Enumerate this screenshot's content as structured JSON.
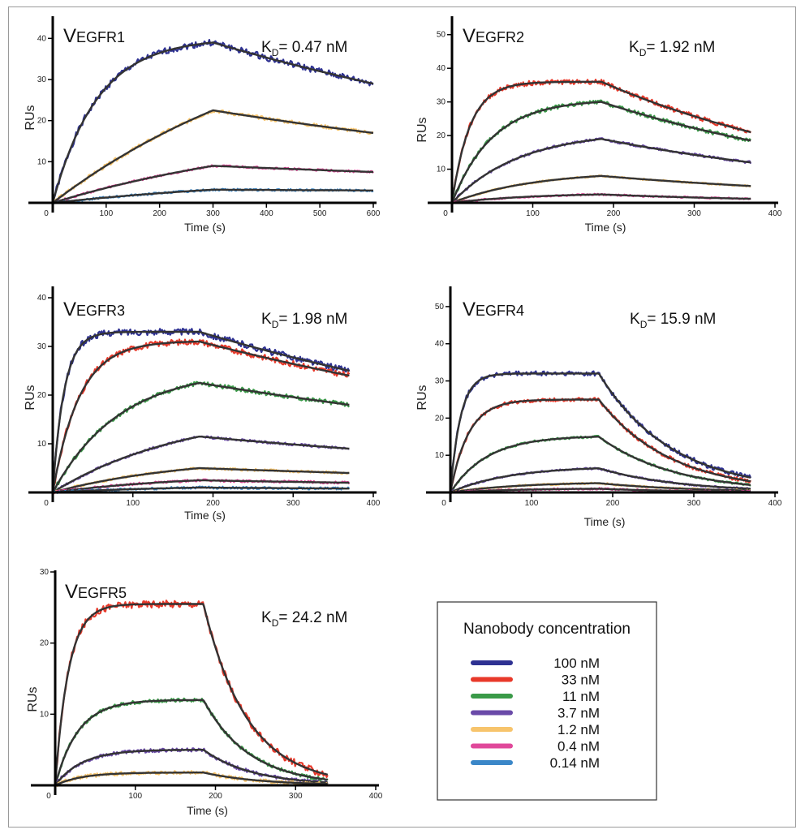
{
  "chart_data": [
    {
      "type": "line",
      "title": "VEGFR1",
      "annotation": "KD= 0.47 nM",
      "kd_value": "0.47",
      "xlabel": "Time (s)",
      "ylabel": "RUs",
      "xlim": [
        0,
        600
      ],
      "ylim": [
        0,
        45
      ],
      "xticks": [
        0,
        100,
        200,
        300,
        400,
        500,
        600
      ],
      "yticks": [
        10,
        20,
        30,
        40
      ],
      "switch_time": 300,
      "end_time": 600,
      "series": [
        {
          "name": "100 nM",
          "peak": 39,
          "end": 29,
          "kon_rate": 0.012,
          "koff_rate": 0.0011
        },
        {
          "name": "1.2 nM",
          "peak": 22.5,
          "end": 17,
          "kon_rate": 0.002,
          "koff_rate": 0.0008
        },
        {
          "name": "0.4 nM",
          "peak": 9,
          "end": 7.5,
          "kon_rate": 0.002,
          "koff_rate": 0.0007
        },
        {
          "name": "0.14 nM",
          "peak": 3.2,
          "end": 3,
          "kon_rate": 0.002,
          "koff_rate": 0.0003
        }
      ]
    },
    {
      "type": "line",
      "title": "VEGFR2",
      "annotation": "KD= 1.92 nM",
      "kd_value": "1.92",
      "xlabel": "Time (s)",
      "ylabel": "RUs",
      "xlim": [
        0,
        400
      ],
      "ylim": [
        0,
        55
      ],
      "xticks": [
        0,
        100,
        200,
        300,
        400
      ],
      "yticks": [
        10,
        20,
        30,
        40,
        50
      ],
      "switch_time": 185,
      "end_time": 370,
      "series": [
        {
          "name": "33 nM",
          "peak": 36,
          "end": 21,
          "kon_rate": 0.045,
          "koff_rate": 0.0029
        },
        {
          "name": "11 nM",
          "peak": 30,
          "end": 18.5,
          "kon_rate": 0.02,
          "koff_rate": 0.0026
        },
        {
          "name": "3.7 nM",
          "peak": 19,
          "end": 12,
          "kon_rate": 0.012,
          "koff_rate": 0.0025
        },
        {
          "name": "1.2 nM",
          "peak": 8,
          "end": 5,
          "kon_rate": 0.01,
          "koff_rate": 0.0025
        },
        {
          "name": "0.4 nM",
          "peak": 2.5,
          "end": 1.2,
          "kon_rate": 0.01,
          "koff_rate": 0.004
        }
      ]
    },
    {
      "type": "line",
      "title": "VEGFR3",
      "annotation": "KD= 1.98 nM",
      "kd_value": "1.98",
      "xlabel": "Time (s)",
      "ylabel": "RUs",
      "xlim": [
        0,
        400
      ],
      "ylim": [
        0,
        42
      ],
      "xticks": [
        0,
        100,
        200,
        300,
        400
      ],
      "yticks": [
        10,
        20,
        30,
        40
      ],
      "switch_time": 183,
      "end_time": 370,
      "series": [
        {
          "name": "100 nM",
          "peak": 33,
          "end": 25,
          "kon_rate": 0.07,
          "koff_rate": 0.0015
        },
        {
          "name": "33 nM",
          "peak": 31,
          "end": 24,
          "kon_rate": 0.03,
          "koff_rate": 0.0014
        },
        {
          "name": "11 nM",
          "peak": 22.5,
          "end": 18,
          "kon_rate": 0.012,
          "koff_rate": 0.0012
        },
        {
          "name": "3.7 nM",
          "peak": 11.5,
          "end": 9,
          "kon_rate": 0.006,
          "koff_rate": 0.0013
        },
        {
          "name": "1.2 nM",
          "peak": 5,
          "end": 4,
          "kon_rate": 0.006,
          "koff_rate": 0.0012
        },
        {
          "name": "0.4 nM",
          "peak": 2.5,
          "end": 2,
          "kon_rate": 0.006,
          "koff_rate": 0.0012
        },
        {
          "name": "0.14 nM",
          "peak": 1,
          "end": 0.8,
          "kon_rate": 0.006,
          "koff_rate": 0.0012
        }
      ]
    },
    {
      "type": "line",
      "title": "VEGFR4",
      "annotation": "KD= 15.9 nM",
      "kd_value": "15.9",
      "xlabel": "Time (s)",
      "ylabel": "RUs",
      "xlim": [
        0,
        400
      ],
      "ylim": [
        0,
        55
      ],
      "xticks": [
        0,
        100,
        200,
        300,
        400
      ],
      "yticks": [
        10,
        20,
        30,
        40,
        50
      ],
      "switch_time": 183,
      "end_time": 370,
      "series": [
        {
          "name": "100 nM",
          "peak": 32,
          "end": 4,
          "kon_rate": 0.08,
          "koff_rate": 0.011
        },
        {
          "name": "33 nM",
          "peak": 25,
          "end": 3,
          "kon_rate": 0.045,
          "koff_rate": 0.011
        },
        {
          "name": "11 nM",
          "peak": 15,
          "end": 2,
          "kon_rate": 0.022,
          "koff_rate": 0.011
        },
        {
          "name": "3.7 nM",
          "peak": 6.5,
          "end": 1,
          "kon_rate": 0.014,
          "koff_rate": 0.011
        },
        {
          "name": "1.2 nM",
          "peak": 2.5,
          "end": 0.5,
          "kon_rate": 0.012,
          "koff_rate": 0.011
        },
        {
          "name": "0.4 nM",
          "peak": 1,
          "end": 0.2,
          "kon_rate": 0.012,
          "koff_rate": 0.011
        }
      ]
    },
    {
      "type": "line",
      "title": "VEGFR5",
      "annotation": "KD= 24.2 nM",
      "kd_value": "24.2",
      "xlabel": "Time (s)",
      "ylabel": "RUs",
      "xlim": [
        0,
        400
      ],
      "ylim": [
        0,
        30
      ],
      "xticks": [
        0,
        100,
        200,
        300,
        400
      ],
      "yticks": [
        10,
        20,
        30
      ],
      "switch_time": 185,
      "end_time": 340,
      "series": [
        {
          "name": "33 nM",
          "peak": 25.5,
          "end": 1.5,
          "kon_rate": 0.06,
          "koff_rate": 0.03
        },
        {
          "name": "11 nM",
          "peak": 12,
          "end": 0.8,
          "kon_rate": 0.035,
          "koff_rate": 0.03
        },
        {
          "name": "3.7 nM",
          "peak": 5,
          "end": 0.4,
          "kon_rate": 0.03,
          "koff_rate": 0.03
        },
        {
          "name": "1.2 nM",
          "peak": 1.8,
          "end": 0.2,
          "kon_rate": 0.03,
          "koff_rate": 0.03
        }
      ]
    }
  ],
  "legend": {
    "title": "Nanobody concentration",
    "items": [
      {
        "label": "100 nM",
        "color": "#2e3192"
      },
      {
        "label": "33 nM",
        "color": "#e8392a"
      },
      {
        "label": "11 nM",
        "color": "#3a9a48"
      },
      {
        "label": "3.7 nM",
        "color": "#6a4aa8"
      },
      {
        "label": "1.2 nM",
        "color": "#f7c46c"
      },
      {
        "label": "0.4 nM",
        "color": "#e0489a"
      },
      {
        "label": "0.14 nM",
        "color": "#3b87c8"
      }
    ]
  },
  "fit_color": "#333333"
}
